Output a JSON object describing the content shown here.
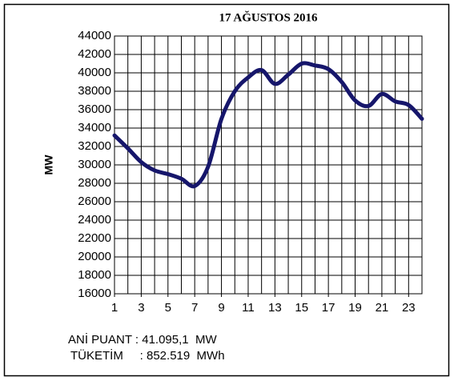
{
  "chart_data": {
    "type": "line",
    "title": "17 AĞUSTOS 2016",
    "y_label": "MW",
    "x": [
      1,
      2,
      3,
      4,
      5,
      6,
      7,
      8,
      9,
      10,
      11,
      12,
      13,
      14,
      15,
      16,
      17,
      18,
      19,
      20,
      21,
      22,
      23,
      24
    ],
    "series": [
      {
        "name": null,
        "color": "#16166b",
        "values": [
          33200,
          31800,
          30300,
          29400,
          29000,
          28500,
          27700,
          29800,
          35000,
          38000,
          39500,
          40300,
          38800,
          39800,
          41000,
          40800,
          40400,
          39000,
          37000,
          36400,
          37700,
          36900,
          36500,
          35000
        ]
      }
    ],
    "xlim": [
      1,
      24
    ],
    "xticks": [
      1,
      3,
      5,
      7,
      9,
      11,
      13,
      15,
      17,
      19,
      21,
      23
    ],
    "ylim": [
      16000,
      44000
    ],
    "yticks": [
      16000,
      18000,
      20000,
      22000,
      24000,
      26000,
      28000,
      30000,
      32000,
      34000,
      36000,
      38000,
      40000,
      42000,
      44000
    ],
    "grid": true,
    "annotations": [
      "ANİ PUANT : 41.095,1  MW",
      "TÜKETİM     : 852.519  MWh"
    ]
  }
}
